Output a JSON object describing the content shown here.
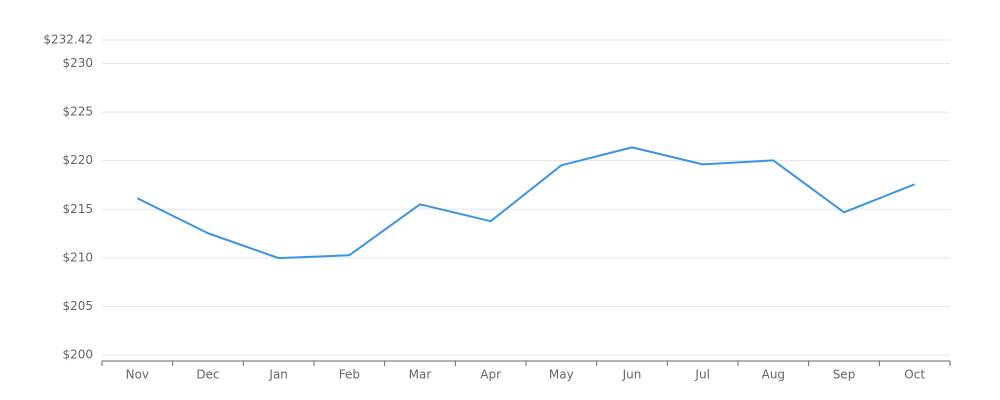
{
  "chart_data": {
    "type": "line",
    "categories": [
      "Nov",
      "Dec",
      "Jan",
      "Feb",
      "Mar",
      "Apr",
      "May",
      "Jun",
      "Jul",
      "Aug",
      "Sep",
      "Oct"
    ],
    "values": [
      216.13,
      212.53,
      209.97,
      210.27,
      215.51,
      213.77,
      219.52,
      221.37,
      219.62,
      220.03,
      214.69,
      217.57
    ],
    "color": "#3a93e3",
    "ylim": [
      200,
      232.42
    ],
    "yticks": [
      {
        "value": 200,
        "label": "$200"
      },
      {
        "value": 205,
        "label": "$205"
      },
      {
        "value": 210,
        "label": "$210"
      },
      {
        "value": 215,
        "label": "$215"
      },
      {
        "value": 220,
        "label": "$220"
      },
      {
        "value": 225,
        "label": "$225"
      },
      {
        "value": 230,
        "label": "$230"
      },
      {
        "value": 232.42,
        "label": "$232.42"
      }
    ],
    "grid": true
  }
}
